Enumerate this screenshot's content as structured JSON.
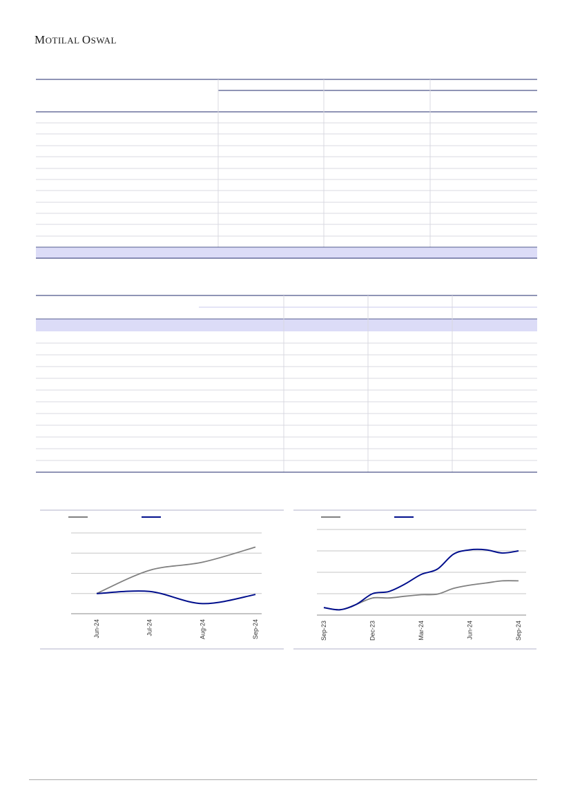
{
  "header": {
    "logo": {
      "first_initial": "M",
      "first_rest": "otilal",
      "second_initial": "O",
      "second_rest": "swal"
    }
  },
  "table_top": {
    "rows": 12,
    "columns": 4,
    "highlighted_row": "last"
  },
  "table_bottom": {
    "rows": 13,
    "columns": 4,
    "highlighted_row": "first"
  },
  "colors": {
    "rule": "#1f2a6b",
    "grid": "#d8d8e0",
    "highlight": "#dcdcf7",
    "accent_navy": "#000e8c",
    "gray_series": "#808080",
    "footer_rule": "#a8a8a8"
  },
  "chart_data": [
    {
      "type": "line",
      "x": [
        "Jun-24",
        "Jul-24",
        "Aug-24",
        "Sep-24"
      ],
      "series": [
        {
          "color": "#808080",
          "values": [
            1.0,
            2.15,
            2.55,
            3.3
          ]
        },
        {
          "color": "#000e8c",
          "values": [
            1.0,
            1.1,
            0.5,
            0.95
          ]
        }
      ],
      "ylim": [
        0,
        4
      ],
      "grid": true,
      "legend": "top-left"
    },
    {
      "type": "line",
      "x": [
        "Sep-23",
        "Oct-23",
        "Nov-23",
        "Dec-23",
        "Jan-24",
        "Feb-24",
        "Mar-24",
        "Apr-24",
        "May-24",
        "Jun-24",
        "Jul-24",
        "Aug-24",
        "Sep-24"
      ],
      "x_ticks": [
        "Sep-23",
        "Dec-23",
        "Mar-24",
        "Jun-24",
        "Sep-24"
      ],
      "series": [
        {
          "color": "#808080",
          "values": [
            0.35,
            0.25,
            0.5,
            0.8,
            0.8,
            0.88,
            0.95,
            0.98,
            1.25,
            1.4,
            1.5,
            1.6,
            1.6
          ]
        },
        {
          "color": "#000e8c",
          "values": [
            0.35,
            0.25,
            0.5,
            1.0,
            1.1,
            1.45,
            1.9,
            2.15,
            2.85,
            3.05,
            3.05,
            2.9,
            3.0
          ]
        }
      ],
      "ylim": [
        0,
        4
      ],
      "grid": true,
      "legend": "top-left"
    }
  ]
}
